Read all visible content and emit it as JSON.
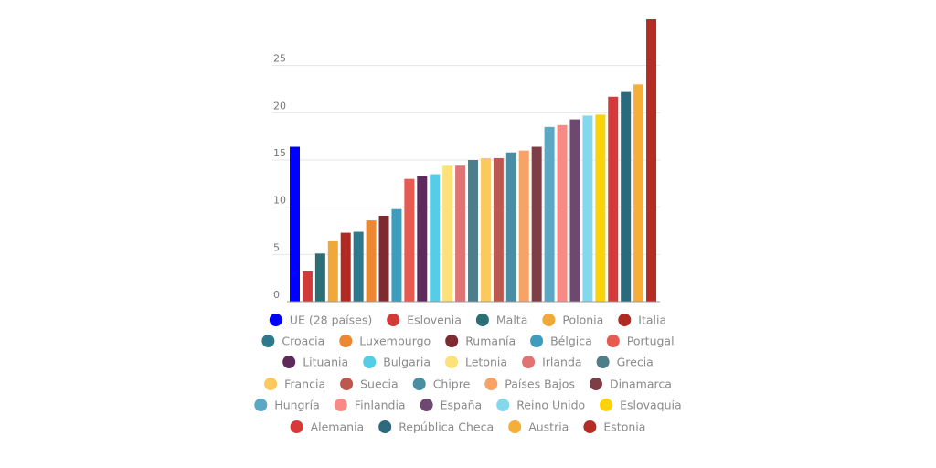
{
  "chart_data": {
    "type": "bar",
    "title": "",
    "xlabel": "",
    "ylabel": "",
    "ylim": [
      0,
      30
    ],
    "yticks": [
      0,
      5,
      10,
      15,
      20,
      25
    ],
    "grid": true,
    "legend_position": "bottom",
    "categories": [
      "UE (28 países)",
      "Eslovenia",
      "Malta",
      "Polonia",
      "Italia",
      "Croacia",
      "Luxemburgo",
      "Rumanía",
      "Bélgica",
      "Portugal",
      "Lituania",
      "Bulgaria",
      "Letonia",
      "Irlanda",
      "Grecia",
      "Francia",
      "Suecia",
      "Chipre",
      "Países Bajos",
      "Dinamarca",
      "Hungría",
      "Finlandia",
      "España",
      "Reino Unido",
      "Eslovaquia",
      "Alemania",
      "República Checa",
      "Austria",
      "Estonia"
    ],
    "values": [
      16.4,
      3.2,
      5.1,
      6.4,
      7.3,
      7.4,
      8.6,
      9.1,
      9.8,
      13.0,
      13.3,
      13.5,
      14.4,
      14.4,
      15.0,
      15.2,
      15.2,
      15.8,
      16.0,
      16.4,
      18.5,
      18.7,
      19.3,
      19.7,
      19.8,
      21.7,
      22.2,
      23.0,
      29.9
    ],
    "colors": [
      "#0000ff",
      "#d23a3a",
      "#2b6e76",
      "#f0a83a",
      "#b02a22",
      "#2e7a8c",
      "#ec8734",
      "#7e2a30",
      "#3e9cbc",
      "#e65a50",
      "#5e2a5c",
      "#56cde6",
      "#fde27a",
      "#e07474",
      "#4d7e8a",
      "#fbc95e",
      "#be574f",
      "#4a8ea4",
      "#f8a366",
      "#7e3e46",
      "#5aa8c4",
      "#f88a86",
      "#6e4870",
      "#84d8ec",
      "#fcd20a",
      "#d63a3a",
      "#2a6a7c",
      "#f6ae3a",
      "#b52c24"
    ]
  }
}
